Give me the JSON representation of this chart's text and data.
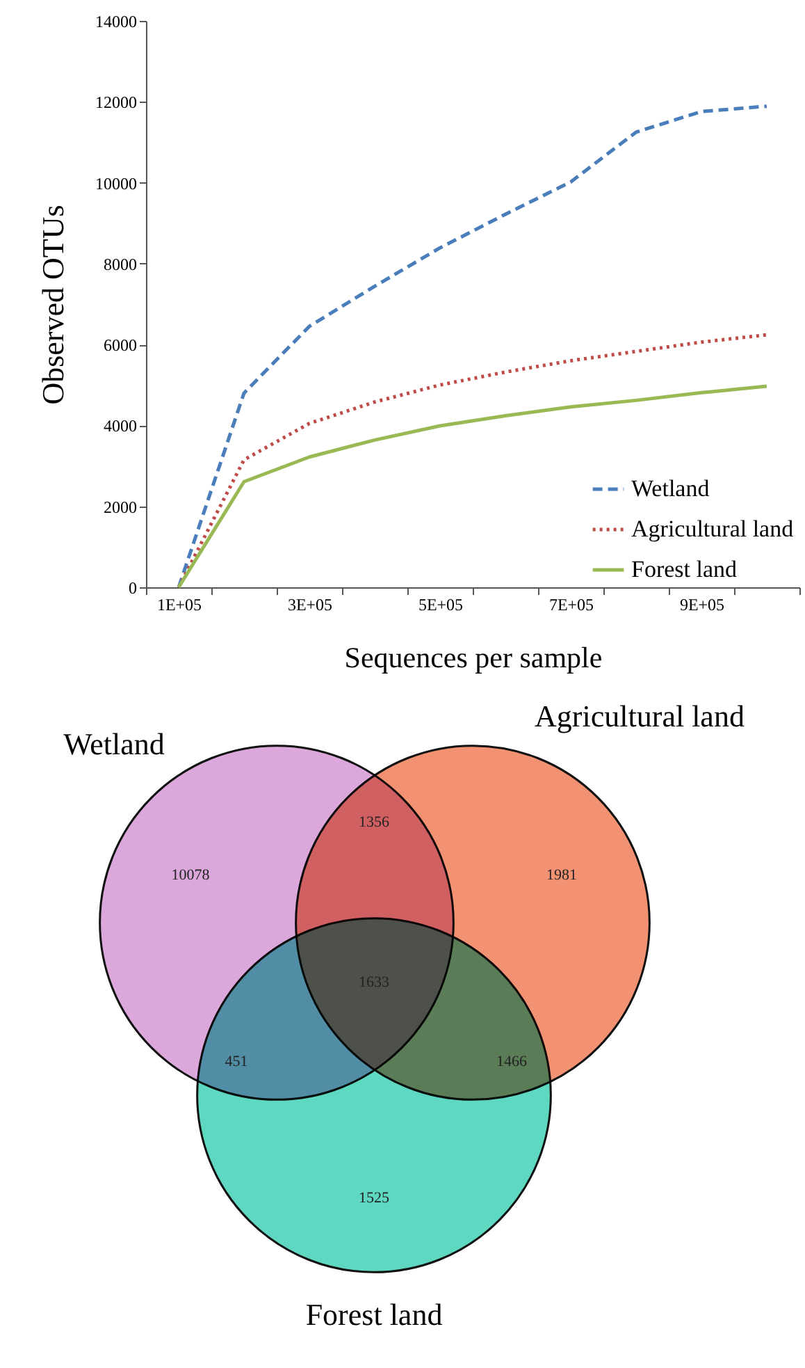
{
  "chart_data": [
    {
      "type": "line",
      "xlabel": "Sequences per sample",
      "ylabel": "Observed OTUs",
      "categories": [
        "1E+05",
        null,
        "3E+05",
        null,
        "5E+05",
        null,
        "7E+05",
        null,
        "9E+05",
        null
      ],
      "ylim": [
        0,
        14000
      ],
      "yticks": [
        0,
        2000,
        4000,
        6000,
        8000,
        10000,
        12000,
        14000
      ],
      "grid": false,
      "legend": "bottom right",
      "marker": "none",
      "series": [
        {
          "name": "Wetland",
          "color": "#4a7ebb",
          "line_style": "dashed",
          "values": [
            0,
            4800,
            6450,
            7440,
            8390,
            9220,
            10020,
            11250,
            11760,
            11890
          ]
        },
        {
          "name": "Agricultural land",
          "color": "#be4b48",
          "line_style": "dotted",
          "values": [
            0,
            3150,
            4050,
            4580,
            5000,
            5320,
            5600,
            5830,
            6060,
            6240
          ]
        },
        {
          "name": "Forest land",
          "color": "#98b954",
          "line_style": "solid",
          "values": [
            0,
            2610,
            3220,
            3640,
            3990,
            4240,
            4460,
            4620,
            4810,
            4970
          ]
        }
      ]
    },
    {
      "type": "other",
      "categories": [
        "Wetland",
        "Agricultural land",
        "Forest land"
      ],
      "colors": [
        "#dca8dc",
        "#f39272",
        "#5ed8c0"
      ],
      "values": [
        10078,
        1981,
        1525
      ],
      "data_labels": true,
      "annotations": [
        "1356",
        "451",
        "1466",
        "1633"
      ]
    }
  ]
}
